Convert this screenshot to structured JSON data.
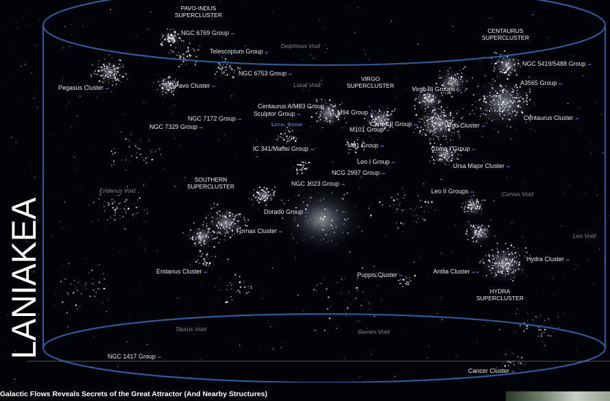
{
  "title": "LANIAKEA",
  "caption": "Galactic Flows Reveals Secrets of the Great Attractor (And Nearby Structures)",
  "superclusters": {
    "pavo_indus": [
      "PAVO-INDUS",
      "SUPERCLUSTER"
    ],
    "centaurus": [
      "CENTAURUS",
      "SUPERCLUSTER"
    ],
    "virgo": [
      "VIRGO",
      "SUPERCLUSTER"
    ],
    "southern": [
      "SOUTHERN",
      "SUPERCLUSTER"
    ],
    "hydra": [
      "HYDRA",
      "SUPERCLUSTER"
    ]
  },
  "labels": {
    "ngc6769": "NGC 6769 Group",
    "telescopium": "Telescopium Group",
    "ngc6753": "NGC 6753 Group",
    "pegasus": "Pegasus Cluster",
    "pavo": "Pavo Cluster",
    "ngc7172": "NGC 7172 Group",
    "ngc7329": "NGC 7329 Group",
    "centaurus_a": "Centaurus A/M83 Group",
    "sculptor": "Sculptor Group",
    "m94": "M94 Group",
    "canes2": "Canes II Group",
    "m101": "M101 Group",
    "ic341": "IC 341/Maffei Group",
    "m81": "M81 Group",
    "leo1": "Leo I Group",
    "ncg2997": "NCG 2997 Group",
    "ngc1023": "NGC 1023 Group",
    "dorado": "Dorado Group",
    "fornax": "Fornax Cluster",
    "eridanus_c": "Eridanus Cluster",
    "puppis": "Puppis Cluster",
    "antlia": "Antlia Cluster",
    "hydra_c": "Hydra Cluster",
    "virgo3": "Virgo III Groups",
    "ngc5419": "NGC 5419/5488 Group",
    "a3565": "A3565 Group",
    "virgo_c": "Virgo Cluster",
    "centaurus_c": "Centaurus Cluster",
    "coma1": "Coma I Group",
    "ursa": "Ursa Major Cluster",
    "leo2": "Leo II Groups",
    "ngc1417": "NGC 1417 Group",
    "cancer": "Cancer Cluster"
  },
  "local_group": "Local Group",
  "voids": {
    "delphinus": "Delphinus Void",
    "local": "Local Void",
    "eridanus": "Eridanus Void",
    "corvus": "Corvus Void",
    "leo": "Leo Void",
    "taurus": "Taurus Void",
    "gemini": "Gemini Void"
  },
  "colors": {
    "background": "#020308",
    "cylinder": "#2f5a9c",
    "local_group": "#5e8fd8",
    "velocity_tag": "#5a4fb0"
  }
}
